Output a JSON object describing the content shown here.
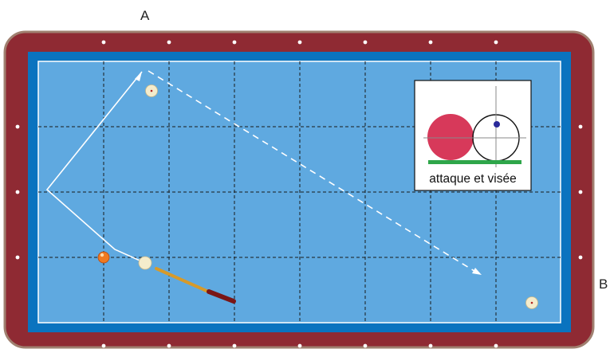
{
  "labels": {
    "a": "A",
    "b": "B"
  },
  "legend": {
    "caption": "attaque et visée"
  },
  "colors": {
    "rail": "#8f2a33",
    "rail_border": "#a08070",
    "cushion": "#0a73bf",
    "cloth": "#5fa9e0",
    "line": "#ffffff",
    "object_ball": "#d7395a",
    "red_ball": "#f07a20",
    "cue_ball": "#f4eccc",
    "aim_dot": "#2a2a9a",
    "contact_bar": "#2ea64a",
    "cue_stick": "#d79a2a",
    "cue_tip": "#7a1616"
  },
  "icons": {
    "diamonds": "diamond-dot",
    "cue": "cue-stick-icon"
  }
}
